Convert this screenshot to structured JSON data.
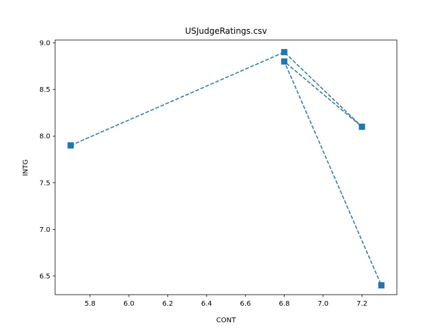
{
  "chart_data": {
    "type": "line",
    "title": "USJudgeRatings.csv",
    "xlabel": "CONT",
    "ylabel": "INTG",
    "xlim": [
      5.62,
      7.38
    ],
    "ylim": [
      6.3,
      9.03
    ],
    "xticks": [
      5.8,
      6.0,
      6.2,
      6.4,
      6.6,
      6.8,
      7.0,
      7.2
    ],
    "xtick_labels": [
      "5.8",
      "6.0",
      "6.2",
      "6.4",
      "6.6",
      "6.8",
      "7.0",
      "7.2"
    ],
    "yticks": [
      6.5,
      7.0,
      7.5,
      8.0,
      8.5,
      9.0
    ],
    "ytick_labels": [
      "6.5",
      "7.0",
      "7.5",
      "8.0",
      "8.5",
      "9.0"
    ],
    "grid": false,
    "line_style": "dashed",
    "marker": "square",
    "color": "#1f77b4",
    "series": [
      {
        "x": [
          5.7,
          6.8,
          7.2,
          6.8,
          7.3
        ],
        "y": [
          7.9,
          8.9,
          8.1,
          8.8,
          6.4
        ]
      }
    ]
  }
}
